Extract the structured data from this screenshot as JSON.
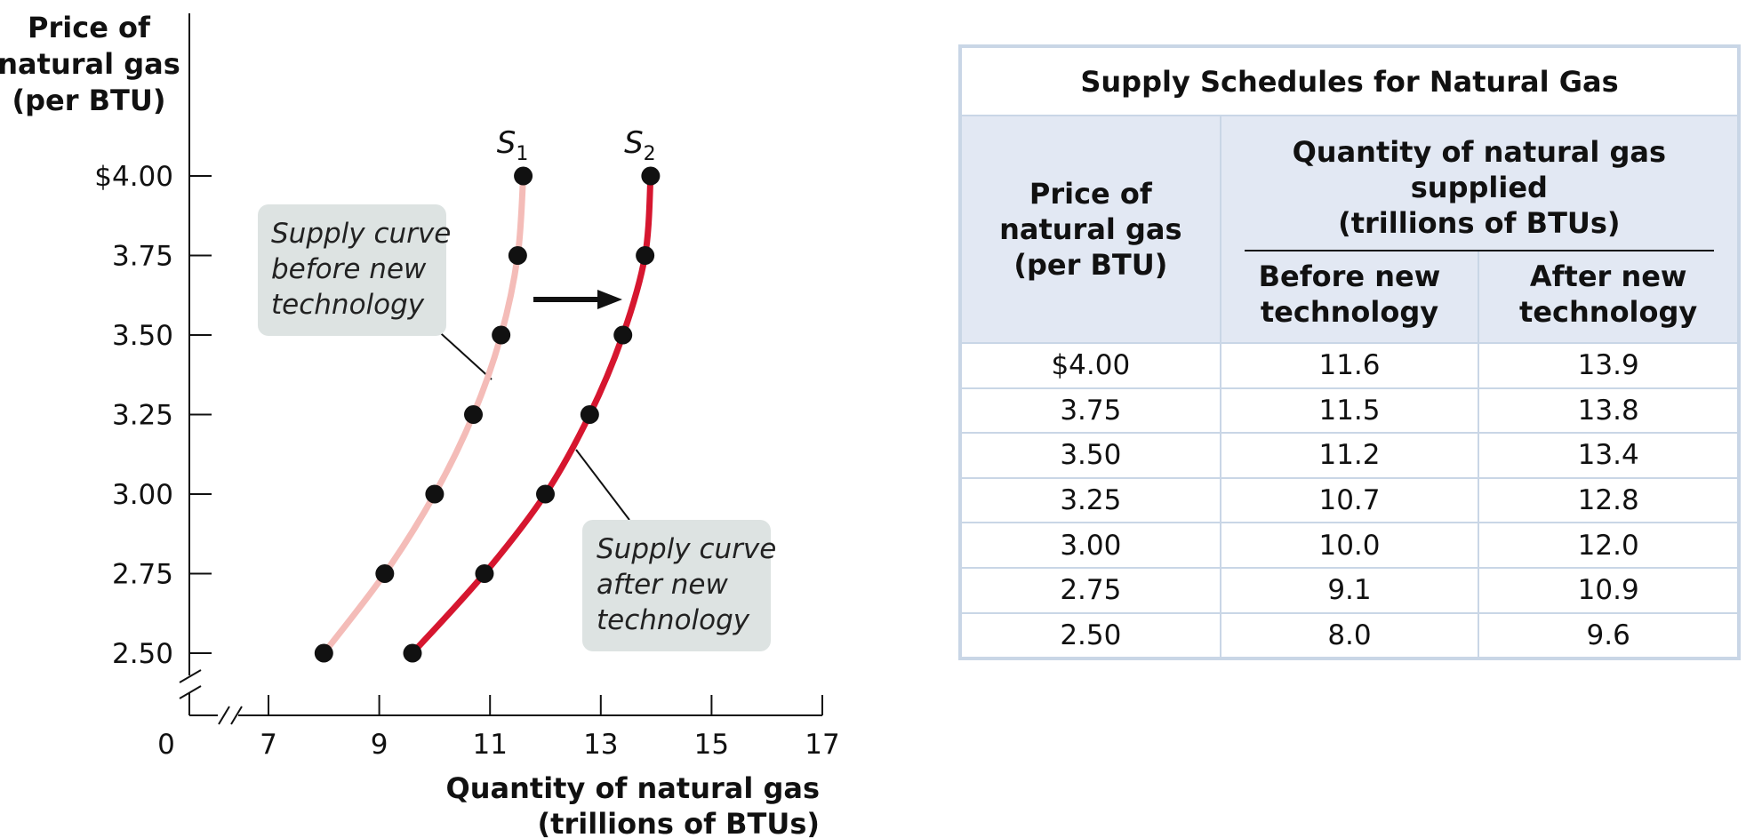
{
  "chart_data": {
    "type": "line",
    "ylabel": [
      "Price of",
      "natural gas",
      "(per BTU)"
    ],
    "xlabel": [
      "Quantity of natural gas",
      "(trillions of BTUs)"
    ],
    "x_ticks": [
      7,
      9,
      11,
      13,
      15,
      17
    ],
    "x_origin_label": "0",
    "y_ticks": [
      "$4.00",
      "3.75",
      "3.50",
      "3.25",
      "3.00",
      "2.75",
      "2.50"
    ],
    "y_tick_values": [
      4.0,
      3.75,
      3.5,
      3.25,
      3.0,
      2.75,
      2.5
    ],
    "xlim": [
      7,
      17
    ],
    "ylim": [
      2.5,
      4.0
    ],
    "axis_breaks": true,
    "shift_arrow": "right",
    "series": [
      {
        "name": "S",
        "subscript": "1",
        "color": "#f4bcb8",
        "points": [
          {
            "x": 8.0,
            "y": 2.5
          },
          {
            "x": 9.1,
            "y": 2.75
          },
          {
            "x": 10.0,
            "y": 3.0
          },
          {
            "x": 10.7,
            "y": 3.25
          },
          {
            "x": 11.2,
            "y": 3.5
          },
          {
            "x": 11.5,
            "y": 3.75
          },
          {
            "x": 11.6,
            "y": 4.0
          }
        ],
        "callout": [
          "Supply curve",
          "before new",
          "technology"
        ]
      },
      {
        "name": "S",
        "subscript": "2",
        "color": "#d6162f",
        "points": [
          {
            "x": 9.6,
            "y": 2.5
          },
          {
            "x": 10.9,
            "y": 2.75
          },
          {
            "x": 12.0,
            "y": 3.0
          },
          {
            "x": 12.8,
            "y": 3.25
          },
          {
            "x": 13.4,
            "y": 3.5
          },
          {
            "x": 13.8,
            "y": 3.75
          },
          {
            "x": 13.9,
            "y": 4.0
          }
        ],
        "callout": [
          "Supply curve",
          "after new",
          "technology"
        ]
      }
    ]
  },
  "table": {
    "title": "Supply Schedules for Natural Gas",
    "price_header": [
      "Price of",
      "natural gas",
      "(per BTU)"
    ],
    "group_header": [
      "Quantity of natural gas supplied",
      "(trillions of BTUs)"
    ],
    "before_header": [
      "Before new",
      "technology"
    ],
    "after_header": [
      "After new",
      "technology"
    ],
    "rows": [
      {
        "price": "$4.00",
        "before": "11.6",
        "after": "13.9"
      },
      {
        "price": "3.75",
        "before": "11.5",
        "after": "13.8"
      },
      {
        "price": "3.50",
        "before": "11.2",
        "after": "13.4"
      },
      {
        "price": "3.25",
        "before": "10.7",
        "after": "12.8"
      },
      {
        "price": "3.00",
        "before": "10.0",
        "after": "12.0"
      },
      {
        "price": "2.75",
        "before": "9.1",
        "after": "10.9"
      },
      {
        "price": "2.50",
        "before": "8.0",
        "after": "9.6"
      }
    ]
  },
  "colors": {
    "table_border": "#c9d6e6",
    "table_header_bg": "#e2e8f3",
    "callout_bg": "#dde3e2",
    "dot": "#111111"
  }
}
